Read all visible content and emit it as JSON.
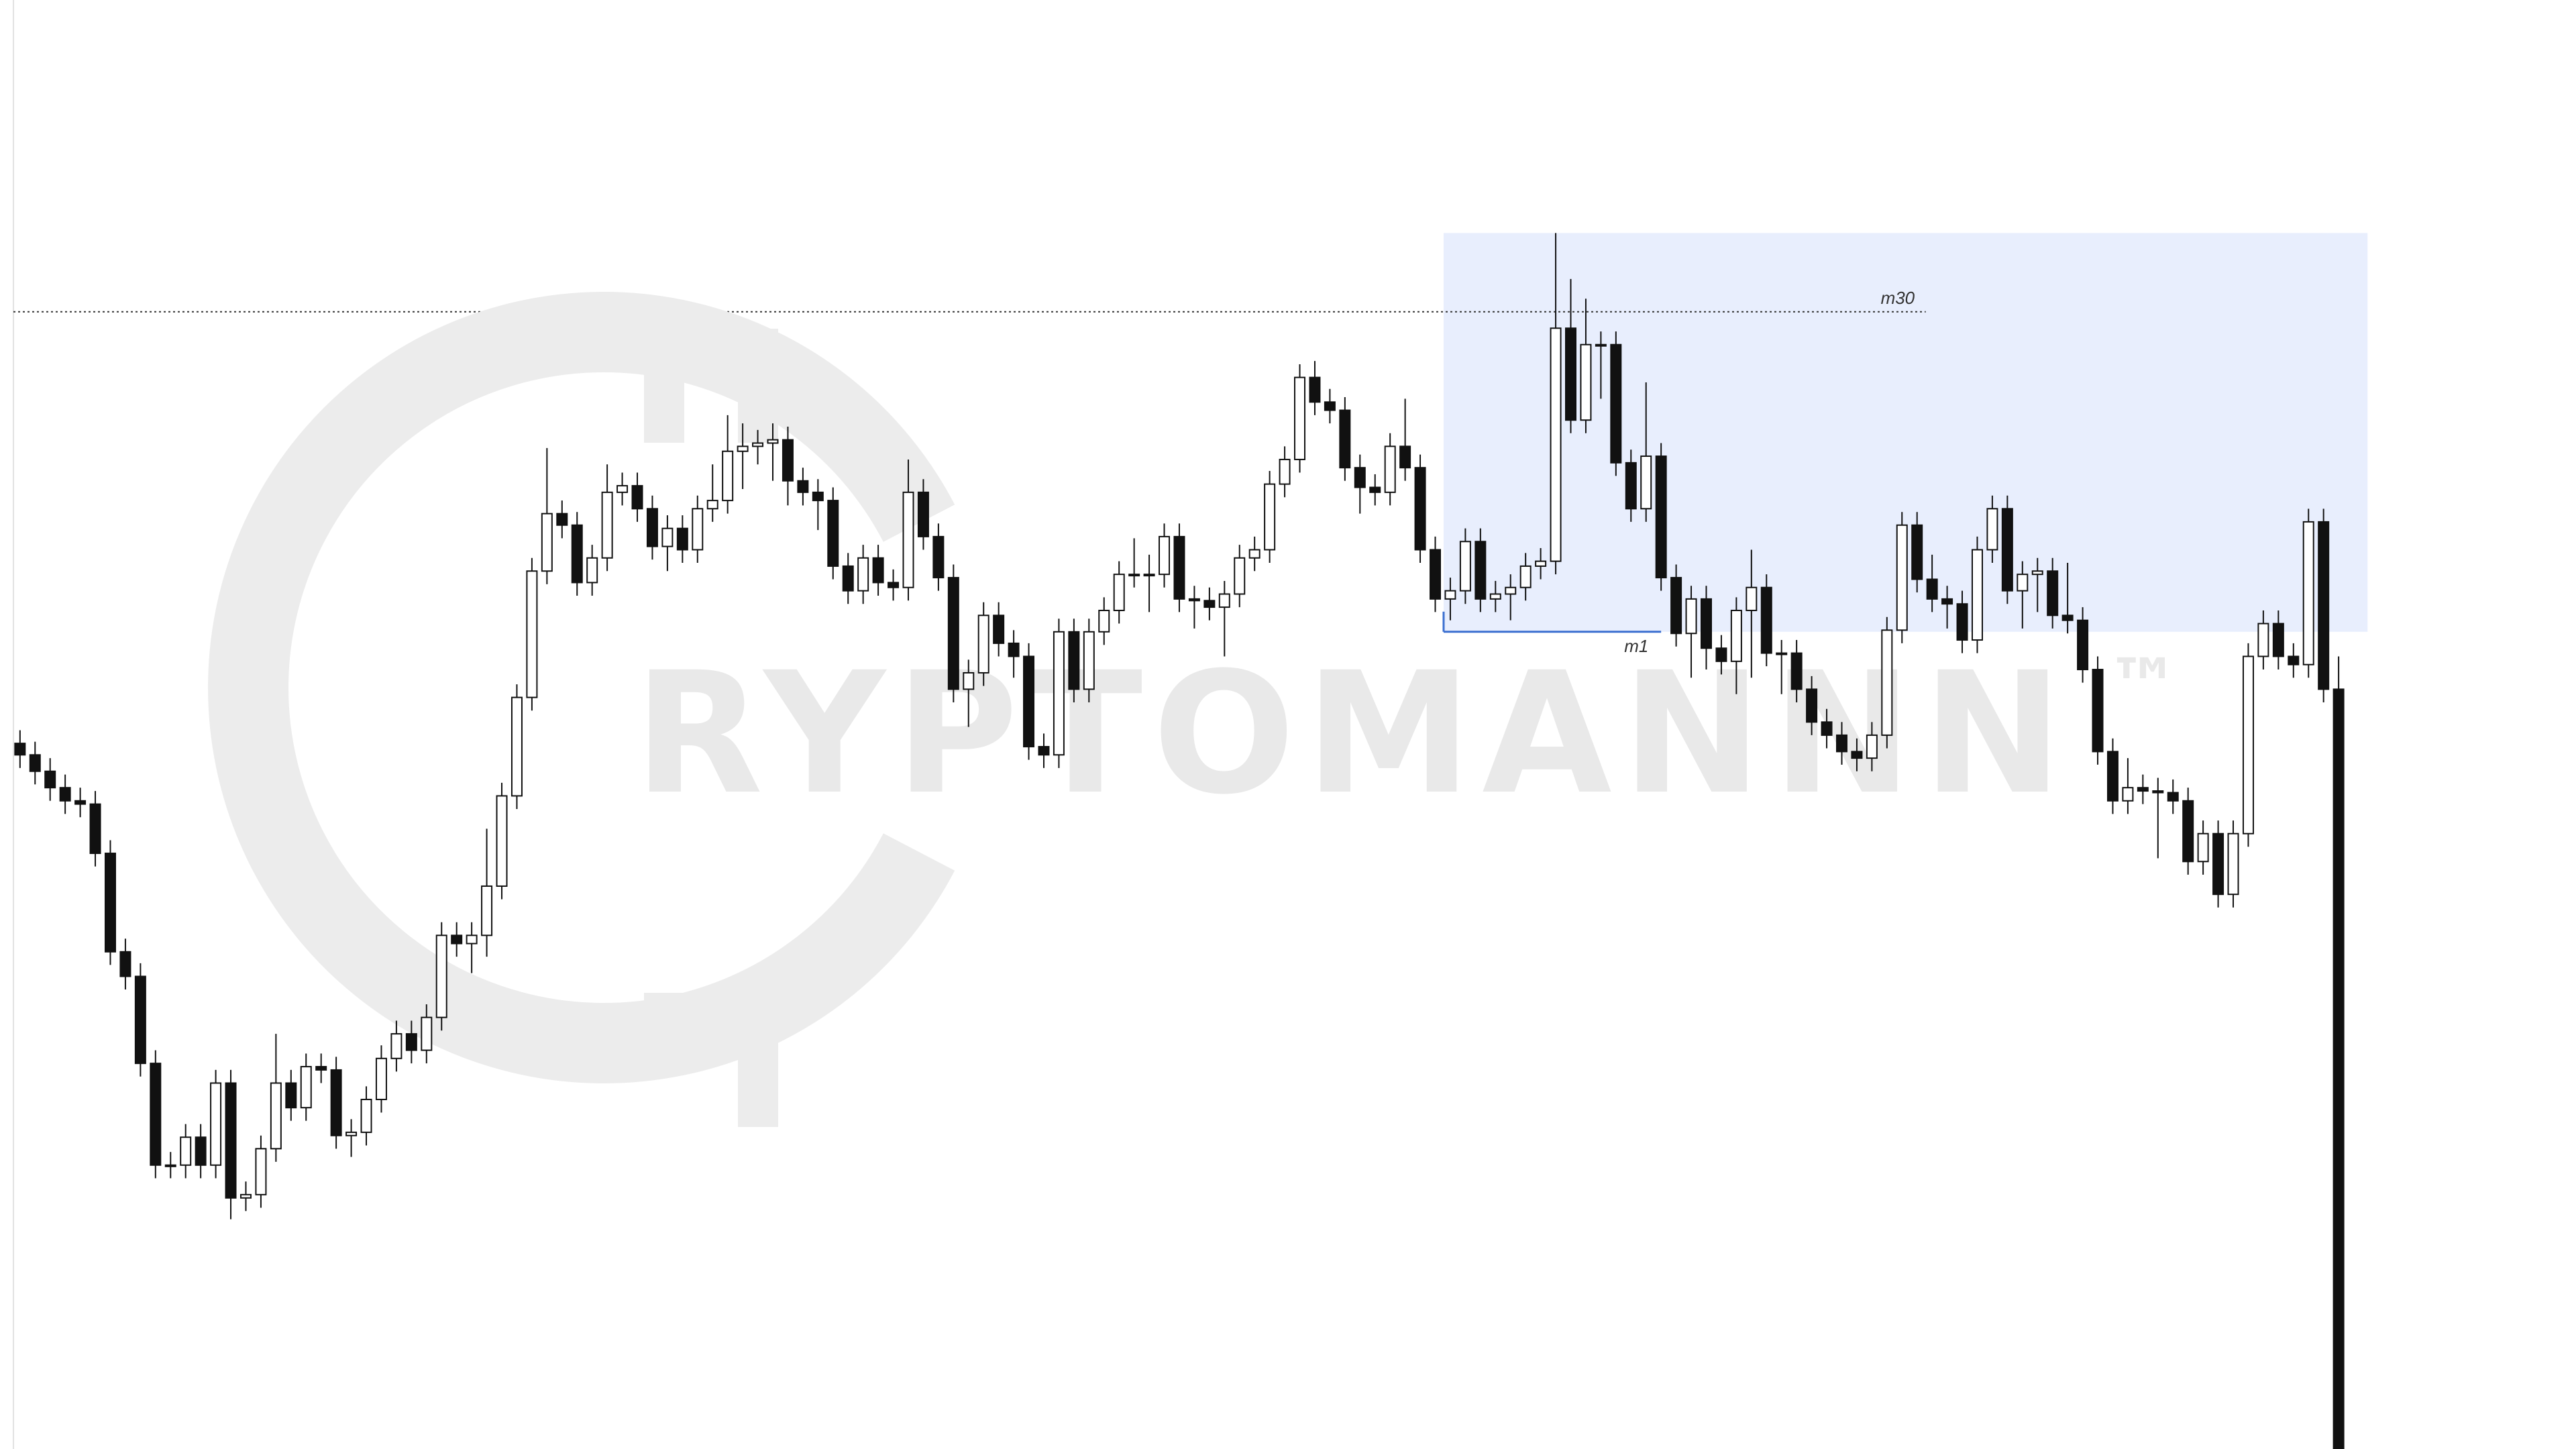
{
  "chart_data": {
    "type": "candlestick",
    "up_color": "#ffffff",
    "down_color": "#111111",
    "outline_color": "#111111",
    "ylim": [
      0,
      883
    ],
    "open": [
      430,
      423,
      413,
      403,
      395,
      393,
      363,
      303,
      288,
      235,
      173,
      173,
      190,
      173,
      223,
      153,
      155,
      183,
      223,
      208,
      233,
      231,
      191,
      193,
      213,
      238,
      253,
      243,
      263,
      313,
      308,
      313,
      343,
      398,
      458,
      535,
      570,
      563,
      528,
      543,
      583,
      587,
      573,
      550,
      561,
      548,
      573,
      578,
      608,
      611,
      613,
      615,
      590,
      583,
      578,
      538,
      523,
      543,
      528,
      525,
      583,
      556,
      531,
      463,
      473,
      508,
      491,
      483,
      428,
      423,
      498,
      463,
      498,
      511,
      533,
      533,
      533,
      556,
      518,
      517,
      513,
      521,
      543,
      548,
      588,
      603,
      653,
      638,
      633,
      598,
      586,
      583,
      611,
      598,
      548,
      518,
      523,
      553,
      518,
      521,
      525,
      538,
      541,
      683,
      627,
      673,
      673,
      601,
      573,
      605,
      531,
      497,
      518,
      488,
      480,
      511,
      525,
      485,
      485,
      463,
      443,
      435,
      425,
      421,
      435,
      499,
      563,
      530,
      518,
      515,
      493,
      548,
      573,
      523,
      533,
      535,
      508,
      505,
      475,
      425,
      395,
      403,
      401,
      400,
      395,
      358,
      375,
      338,
      375,
      483,
      503,
      483,
      478,
      565,
      463
    ],
    "high": [
      438,
      431,
      421,
      411,
      403,
      401,
      371,
      311,
      296,
      243,
      181,
      198,
      198,
      231,
      231,
      163,
      191,
      253,
      231,
      241,
      241,
      239,
      201,
      221,
      246,
      261,
      261,
      271,
      321,
      321,
      321,
      378,
      406,
      466,
      543,
      610,
      578,
      571,
      551,
      600,
      595,
      595,
      581,
      569,
      569,
      581,
      600,
      630,
      625,
      621,
      625,
      623,
      598,
      591,
      586,
      546,
      551,
      551,
      536,
      603,
      591,
      564,
      539,
      481,
      516,
      516,
      499,
      491,
      436,
      506,
      506,
      506,
      519,
      541,
      555,
      545,
      564,
      564,
      526,
      525,
      529,
      551,
      556,
      596,
      611,
      661,
      663,
      646,
      641,
      606,
      594,
      619,
      640,
      606,
      556,
      531,
      561,
      561,
      529,
      533,
      546,
      549,
      741,
      713,
      701,
      681,
      681,
      609,
      650,
      613,
      539,
      526,
      526,
      496,
      519,
      548,
      533,
      493,
      493,
      471,
      451,
      443,
      433,
      443,
      507,
      571,
      571,
      545,
      526,
      523,
      556,
      581,
      581,
      541,
      543,
      543,
      540,
      513,
      483,
      433,
      421,
      411,
      409,
      408,
      403,
      383,
      383,
      383,
      491,
      511,
      511,
      491,
      573,
      573,
      483
    ],
    "low": [
      415,
      405,
      395,
      387,
      385,
      355,
      295,
      280,
      227,
      165,
      165,
      165,
      165,
      165,
      140,
      145,
      147,
      175,
      200,
      200,
      223,
      183,
      178,
      185,
      205,
      230,
      235,
      235,
      255,
      300,
      290,
      300,
      335,
      390,
      450,
      527,
      555,
      520,
      520,
      535,
      575,
      565,
      542,
      535,
      540,
      540,
      565,
      570,
      585,
      600,
      590,
      575,
      575,
      560,
      530,
      515,
      515,
      520,
      517,
      517,
      548,
      523,
      455,
      440,
      465,
      483,
      470,
      420,
      415,
      415,
      455,
      455,
      490,
      503,
      525,
      510,
      525,
      510,
      500,
      505,
      483,
      513,
      535,
      540,
      580,
      595,
      630,
      625,
      590,
      570,
      575,
      575,
      590,
      540,
      510,
      505,
      515,
      510,
      510,
      505,
      517,
      530,
      533,
      619,
      619,
      640,
      593,
      565,
      565,
      523,
      489,
      470,
      475,
      472,
      460,
      470,
      477,
      460,
      455,
      435,
      427,
      417,
      413,
      413,
      427,
      491,
      522,
      510,
      500,
      485,
      485,
      540,
      515,
      500,
      510,
      500,
      497,
      467,
      417,
      387,
      387,
      393,
      360,
      387,
      350,
      350,
      330,
      330,
      367,
      475,
      475,
      470,
      470,
      455,
      0
    ],
    "close": [
      423,
      413,
      403,
      395,
      393,
      363,
      303,
      288,
      235,
      173,
      173,
      190,
      173,
      223,
      153,
      155,
      183,
      223,
      208,
      233,
      231,
      191,
      193,
      213,
      238,
      253,
      243,
      263,
      313,
      308,
      313,
      343,
      398,
      458,
      535,
      570,
      563,
      528,
      543,
      583,
      587,
      573,
      550,
      561,
      548,
      573,
      578,
      608,
      611,
      613,
      615,
      590,
      583,
      578,
      538,
      523,
      543,
      528,
      525,
      583,
      556,
      531,
      463,
      473,
      508,
      491,
      483,
      428,
      423,
      498,
      463,
      498,
      511,
      533,
      533,
      533,
      556,
      518,
      517,
      513,
      521,
      543,
      548,
      588,
      603,
      653,
      638,
      633,
      598,
      586,
      583,
      611,
      598,
      548,
      518,
      523,
      553,
      518,
      521,
      525,
      538,
      541,
      683,
      627,
      673,
      673,
      601,
      573,
      605,
      531,
      497,
      518,
      488,
      480,
      511,
      525,
      485,
      485,
      463,
      443,
      435,
      425,
      421,
      435,
      499,
      563,
      530,
      518,
      515,
      493,
      548,
      573,
      523,
      533,
      535,
      508,
      505,
      475,
      425,
      395,
      403,
      401,
      400,
      395,
      358,
      375,
      338,
      375,
      483,
      503,
      483,
      478,
      565,
      463,
      0
    ],
    "levels": [
      {
        "label": "m30",
        "value": 693,
        "color": "#333333"
      }
    ],
    "zone": {
      "label": "m1",
      "top": 741,
      "bottom": 498,
      "color": "#e8eefd",
      "line_color": "#3b6fd0"
    },
    "watermark": "RYPTOMANNN",
    "watermark_mark": "™"
  }
}
